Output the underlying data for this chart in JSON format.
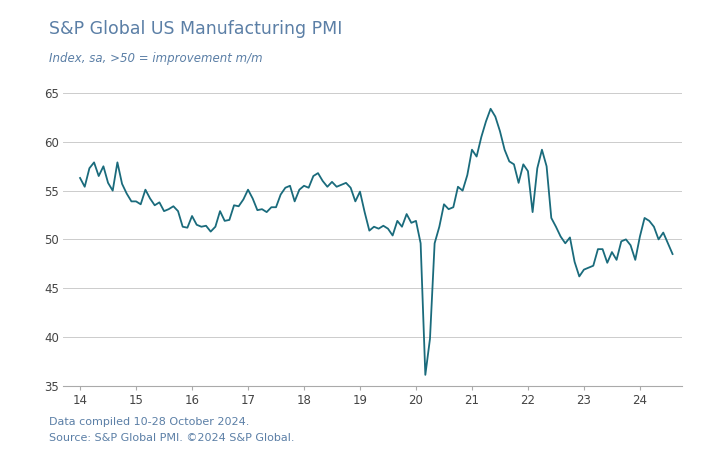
{
  "title": "S&P Global US Manufacturing PMI",
  "subtitle": "Index, sa, >50 = improvement m/m",
  "title_color": "#5b7fa6",
  "subtitle_color": "#5b7fa6",
  "line_color": "#1a6b7c",
  "background_color": "#ffffff",
  "footer_line1": "Data compiled 10-28 October 2024.",
  "footer_line2": "Source: S&P Global PMI. ©2024 S&P Global.",
  "footer_color": "#5b7fa6",
  "xlim": [
    13.7,
    24.75
  ],
  "ylim": [
    35,
    66
  ],
  "yticks": [
    35,
    40,
    45,
    50,
    55,
    60,
    65
  ],
  "xticks": [
    14,
    15,
    16,
    17,
    18,
    19,
    20,
    21,
    22,
    23,
    24
  ],
  "x": [
    14.0,
    14.083,
    14.167,
    14.25,
    14.333,
    14.417,
    14.5,
    14.583,
    14.667,
    14.75,
    14.833,
    14.917,
    15.0,
    15.083,
    15.167,
    15.25,
    15.333,
    15.417,
    15.5,
    15.583,
    15.667,
    15.75,
    15.833,
    15.917,
    16.0,
    16.083,
    16.167,
    16.25,
    16.333,
    16.417,
    16.5,
    16.583,
    16.667,
    16.75,
    16.833,
    16.917,
    17.0,
    17.083,
    17.167,
    17.25,
    17.333,
    17.417,
    17.5,
    17.583,
    17.667,
    17.75,
    17.833,
    17.917,
    18.0,
    18.083,
    18.167,
    18.25,
    18.333,
    18.417,
    18.5,
    18.583,
    18.667,
    18.75,
    18.833,
    18.917,
    19.0,
    19.083,
    19.167,
    19.25,
    19.333,
    19.417,
    19.5,
    19.583,
    19.667,
    19.75,
    19.833,
    19.917,
    20.0,
    20.083,
    20.167,
    20.25,
    20.333,
    20.417,
    20.5,
    20.583,
    20.667,
    20.75,
    20.833,
    20.917,
    21.0,
    21.083,
    21.167,
    21.25,
    21.333,
    21.417,
    21.5,
    21.583,
    21.667,
    21.75,
    21.833,
    21.917,
    22.0,
    22.083,
    22.167,
    22.25,
    22.333,
    22.417,
    22.5,
    22.583,
    22.667,
    22.75,
    22.833,
    22.917,
    23.0,
    23.083,
    23.167,
    23.25,
    23.333,
    23.417,
    23.5,
    23.583,
    23.667,
    23.75,
    23.833,
    23.917,
    24.0,
    24.083,
    24.167,
    24.25,
    24.333,
    24.417,
    24.5,
    24.583
  ],
  "y": [
    56.3,
    55.4,
    57.3,
    57.9,
    56.5,
    57.5,
    55.8,
    55.0,
    57.9,
    55.7,
    54.7,
    53.9,
    53.9,
    53.6,
    55.1,
    54.2,
    53.5,
    53.8,
    52.9,
    53.1,
    53.4,
    52.9,
    51.3,
    51.2,
    52.4,
    51.5,
    51.3,
    51.4,
    50.8,
    51.3,
    52.9,
    51.9,
    52.0,
    53.5,
    53.4,
    54.1,
    55.1,
    54.2,
    53.0,
    53.1,
    52.8,
    53.3,
    53.3,
    54.6,
    55.3,
    55.5,
    53.9,
    55.1,
    55.5,
    55.3,
    56.5,
    56.8,
    56.0,
    55.4,
    55.9,
    55.4,
    55.6,
    55.8,
    55.3,
    53.9,
    54.9,
    52.8,
    50.9,
    51.3,
    51.1,
    51.4,
    51.1,
    50.4,
    51.9,
    51.3,
    52.6,
    51.7,
    51.9,
    49.6,
    36.1,
    39.8,
    49.6,
    51.3,
    53.6,
    53.1,
    53.3,
    55.4,
    55.0,
    56.6,
    59.2,
    58.5,
    60.5,
    62.1,
    63.4,
    62.6,
    61.1,
    59.2,
    58.0,
    57.7,
    55.8,
    57.7,
    57.0,
    52.8,
    57.3,
    59.2,
    57.5,
    52.2,
    51.3,
    50.3,
    49.6,
    50.2,
    47.7,
    46.2,
    46.9,
    47.1,
    47.3,
    49.0,
    49.0,
    47.6,
    48.7,
    47.9,
    49.8,
    50.0,
    49.4,
    47.9,
    50.3,
    52.2,
    51.9,
    51.3,
    50.0,
    50.7,
    49.6,
    48.5
  ]
}
